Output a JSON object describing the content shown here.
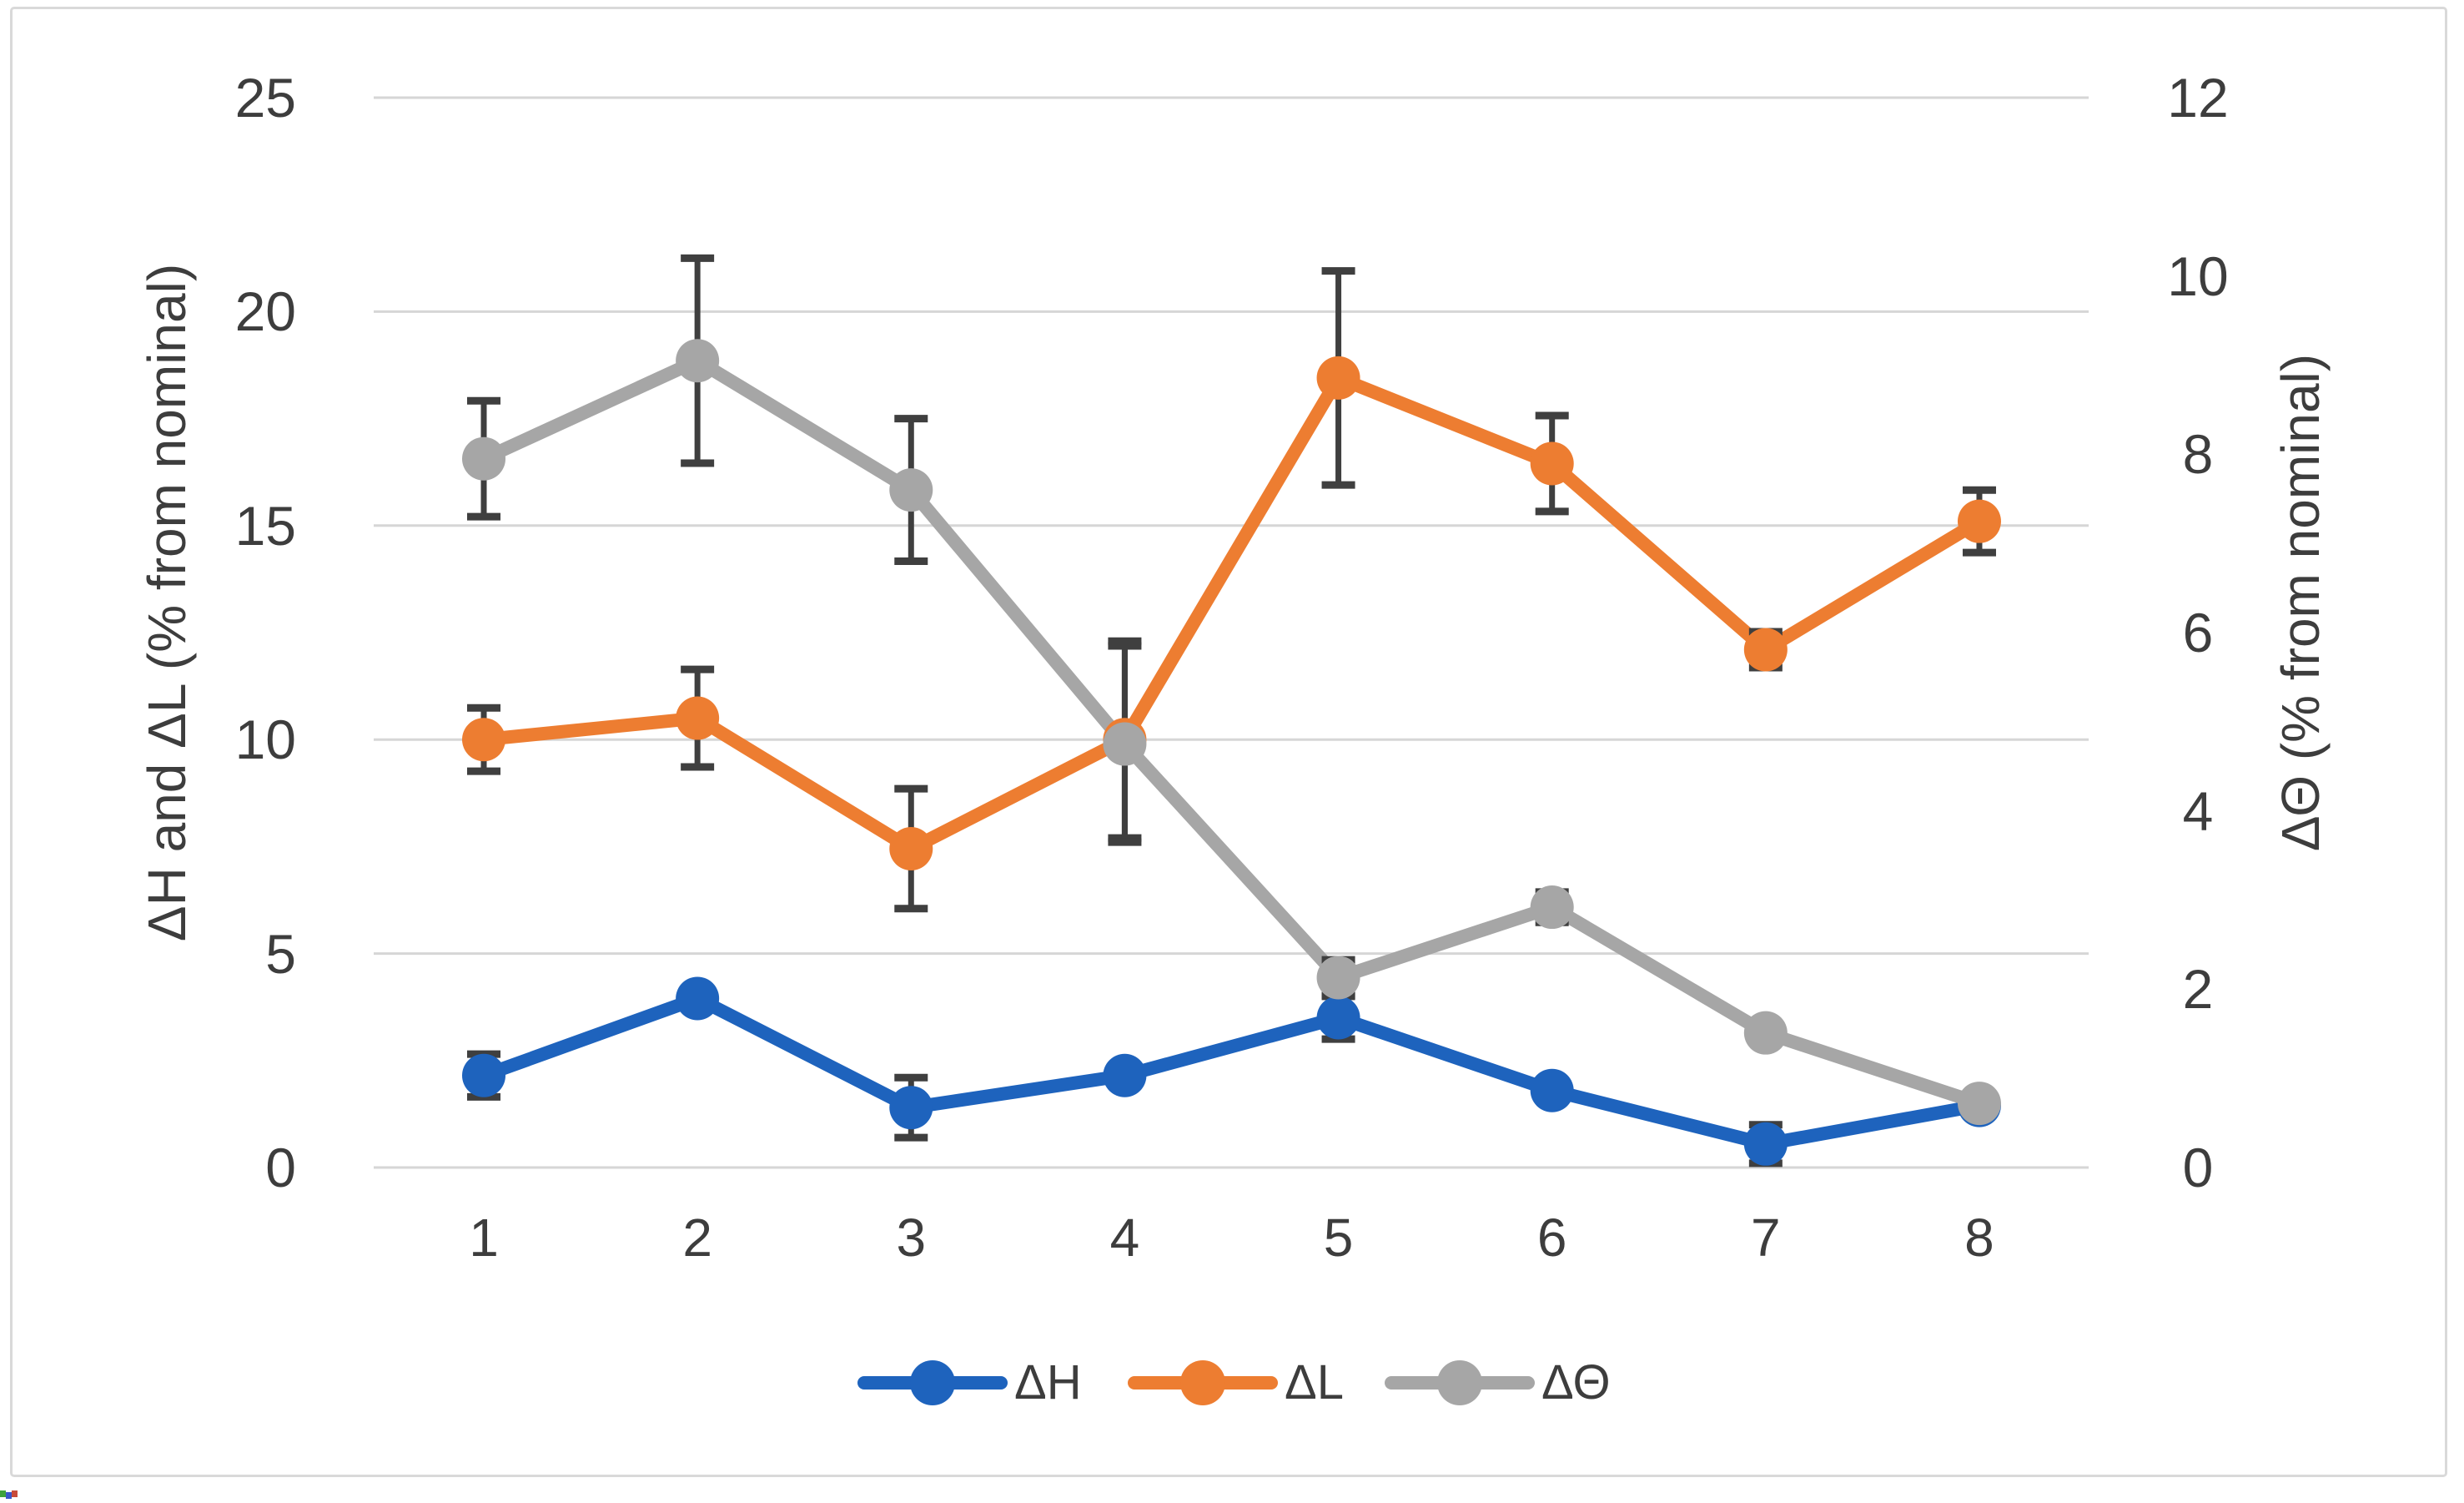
{
  "chart_data": {
    "type": "line",
    "title": "",
    "x_categories": [
      "1",
      "2",
      "3",
      "4",
      "5",
      "6",
      "7",
      "8"
    ],
    "left_axis": {
      "label": "ΔH and ΔL (% from nominal)",
      "min": 0,
      "max": 25,
      "step": 5,
      "ticks": [
        0,
        5,
        10,
        15,
        20,
        25
      ]
    },
    "right_axis": {
      "label": "ΔΘ (% from nominal)",
      "min": 0,
      "max": 12,
      "step": 2,
      "ticks": [
        0,
        2,
        4,
        6,
        8,
        10,
        12
      ]
    },
    "grid": true,
    "legend": {
      "position": "bottom",
      "entries": [
        "ΔH",
        "ΔL",
        "ΔΘ"
      ]
    },
    "series": [
      {
        "name": "ΔH",
        "axis": "left",
        "color": "#1e63bd",
        "marker": "circle",
        "values": [
          2.15,
          3.95,
          1.4,
          2.15,
          3.5,
          1.8,
          0.55,
          1.45
        ],
        "errors": [
          0.5,
          0.15,
          0.7,
          0.12,
          0.5,
          0.1,
          0.45,
          0.1
        ]
      },
      {
        "name": "ΔL",
        "axis": "left",
        "color": "#ed7d31",
        "marker": "circle",
        "values": [
          10.0,
          10.5,
          7.45,
          10.0,
          18.45,
          16.45,
          12.1,
          15.1
        ],
        "errors": [
          0.74,
          1.14,
          1.4,
          2.3,
          2.5,
          1.12,
          0.42,
          0.73
        ]
      },
      {
        "name": "ΔΘ",
        "axis": "right",
        "color": "#a6a6a6",
        "marker": "circle",
        "values": [
          7.95,
          9.05,
          7.6,
          4.75,
          2.13,
          2.92,
          1.51,
          0.72
        ],
        "errors": [
          0.65,
          1.15,
          0.8,
          1.1,
          0.2,
          0.17,
          0.1,
          0.07
        ]
      }
    ],
    "style": {
      "gridline_color": "#d6d6d6",
      "error_bar_color": "#3f3f3f",
      "text_color": "#3d3d3d",
      "frame_color": "#d9d9d9",
      "background": "#ffffff"
    }
  },
  "artifacts": {
    "corner_pixels": [
      "#3fa23c",
      "#3a57c9",
      "#c84b3a"
    ]
  }
}
